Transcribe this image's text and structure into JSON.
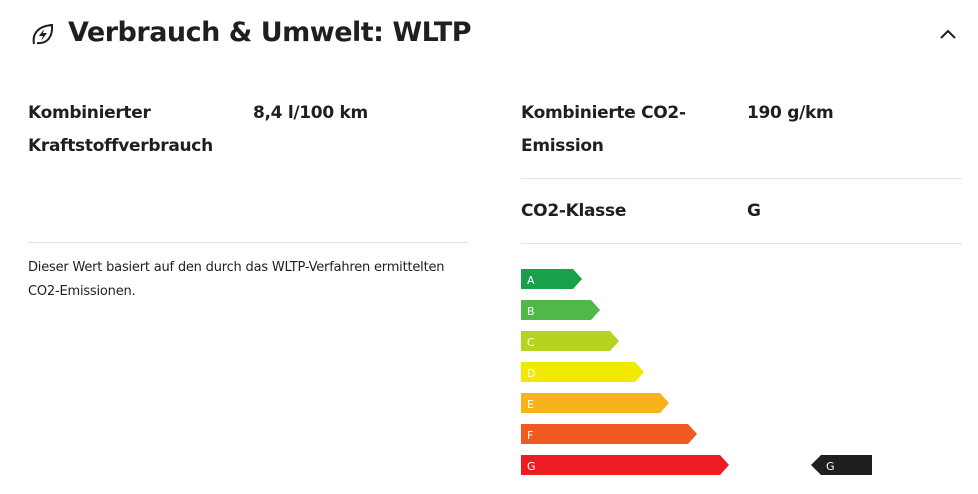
{
  "header": {
    "title": "Verbrauch & Umwelt: WLTP"
  },
  "left": {
    "rows": [
      {
        "label": "Kombinierter Kraftstoffverbrauch",
        "value": "8,4 l/100 km"
      }
    ],
    "note": "Dieser Wert basiert auf den durch das WLTP-Verfahren ermittelten CO2-Emissionen."
  },
  "right": {
    "rows": [
      {
        "label": "Kombinierte CO2-Emission",
        "value": "190 g/km"
      },
      {
        "label": "CO2-Klasse",
        "value": "G"
      }
    ]
  },
  "energy_scale": {
    "classes": [
      "A",
      "B",
      "C",
      "D",
      "E",
      "F",
      "G"
    ],
    "indicator": "G"
  }
}
